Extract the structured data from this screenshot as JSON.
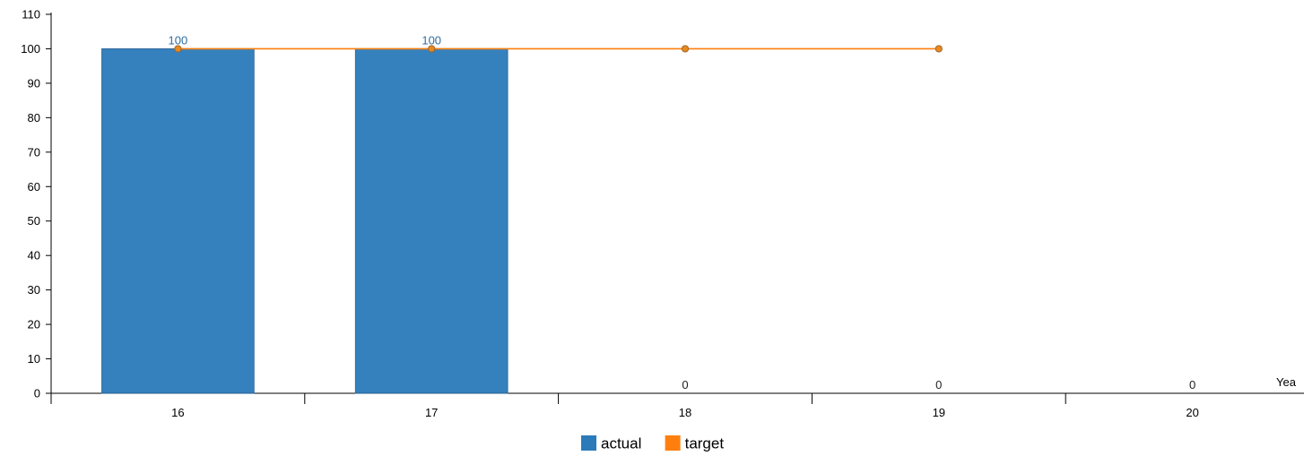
{
  "chart_data": {
    "type": "bar",
    "categories": [
      "16",
      "17",
      "18",
      "19",
      "20"
    ],
    "series": [
      {
        "name": "actual",
        "type": "bar",
        "values": [
          100,
          100,
          0,
          0,
          0
        ],
        "color": "#2b7bba"
      },
      {
        "name": "target",
        "type": "line",
        "values": [
          100,
          100,
          100,
          100,
          null
        ],
        "color": "#ff7f0e"
      }
    ],
    "bar_labels": [
      "100",
      "100",
      "0",
      "0",
      "0"
    ],
    "bar_label_color": "#2f6ea0",
    "zero_label_color": "#222222",
    "xlabel": "Yea",
    "ylabel": "",
    "ylim": [
      0,
      110
    ],
    "yticks": [
      0,
      10,
      20,
      30,
      40,
      50,
      60,
      70,
      80,
      90,
      100,
      110
    ],
    "legend": {
      "placement": "bottom-center",
      "items": [
        {
          "label": "actual",
          "color": "#2b7bba"
        },
        {
          "label": "target",
          "color": "#ff7f0e"
        }
      ]
    },
    "grid": false
  }
}
